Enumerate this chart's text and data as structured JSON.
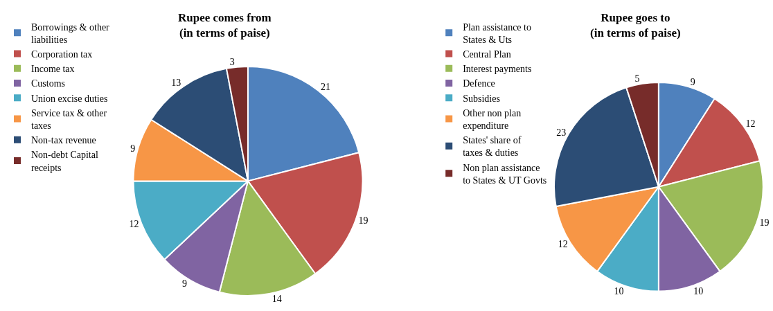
{
  "chart_data": [
    {
      "type": "pie",
      "title": "Rupee comes from (in terms of paise)",
      "categories": [
        "Borrowings & other liabilities",
        "Corporation tax",
        "Income tax",
        "Customs",
        "Union excise duties",
        "Service tax & other taxes",
        "Non-tax revenue",
        "Non-debt Capital receipts"
      ],
      "values": [
        21,
        19,
        14,
        9,
        12,
        9,
        13,
        3
      ],
      "colors": [
        "#4f81bd",
        "#c0504d",
        "#9bbb59",
        "#8064a2",
        "#4bacc6",
        "#f79646",
        "#2c4d75",
        "#772c2a"
      ],
      "data_labels": true,
      "legend": "left"
    },
    {
      "type": "pie",
      "title": "Rupee goes to (in terms of paise)",
      "categories": [
        "Plan assistance to States & Uts",
        "Central Plan",
        "Interest payments",
        "Defence",
        "Subsidies",
        "Other non plan expenditure",
        "States' share of taxes & duties",
        "Non plan assistance to States & UT Govts"
      ],
      "values": [
        9,
        12,
        19,
        10,
        10,
        12,
        23,
        5
      ],
      "colors": [
        "#4f81bd",
        "#c0504d",
        "#9bbb59",
        "#8064a2",
        "#4bacc6",
        "#f79646",
        "#2c4d75",
        "#772c2a"
      ],
      "data_labels": true,
      "legend": "left"
    }
  ]
}
